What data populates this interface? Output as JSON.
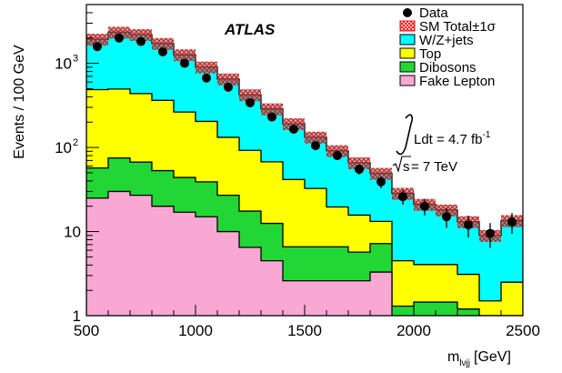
{
  "chart_data": {
    "type": "histogram-stacked",
    "title": "",
    "xlabel": "m",
    "xlabel_sub": "lνjj",
    "xlabel_unit": "[GeV]",
    "ylabel": "Events / 100 GeV",
    "xlim": [
      500,
      2500
    ],
    "ylim": [
      1,
      5000
    ],
    "yscale": "log",
    "x_ticks": [
      500,
      1000,
      1500,
      2000,
      2500
    ],
    "y_tick_labels": [
      {
        "value": 1,
        "label": "1"
      },
      {
        "value": 10,
        "label": "10"
      },
      {
        "value": 100,
        "base": "10",
        "exp": "2"
      },
      {
        "value": 1000,
        "base": "10",
        "exp": "3"
      }
    ],
    "bin_edges": [
      500,
      600,
      700,
      800,
      900,
      1000,
      1100,
      1200,
      1300,
      1400,
      1500,
      1600,
      1700,
      1800,
      1900,
      2000,
      2100,
      2200,
      2300,
      2400,
      2500
    ],
    "stack": [
      {
        "key": "fake",
        "color": "#f9a8d4",
        "values": [
          25,
          30,
          27,
          20,
          17,
          15,
          10,
          6.5,
          4.5,
          2.6,
          2.6,
          2.6,
          2.6,
          3.3,
          0,
          0,
          0,
          0,
          0,
          0
        ]
      },
      {
        "key": "dib",
        "color": "#22d636",
        "values": [
          32,
          45,
          40,
          33,
          27,
          24,
          17,
          11,
          8,
          4,
          4,
          4,
          3.1,
          3.9,
          1.3,
          1.45,
          1.45,
          1.2,
          0,
          0
        ]
      },
      {
        "key": "top",
        "color": "#ffff00",
        "values": [
          430,
          420,
          370,
          310,
          220,
          165,
          105,
          75,
          55,
          35,
          26,
          13,
          10,
          6,
          3.2,
          2.6,
          2.6,
          1.9,
          1.5,
          2.5
        ]
      },
      {
        "key": "wz",
        "color": "#00ffff",
        "values": [
          1450,
          1850,
          1760,
          1360,
          1000,
          700,
          520,
          330,
          220,
          150,
          100,
          72,
          50,
          36,
          24,
          17,
          14,
          10,
          7.5,
          11
        ]
      }
    ],
    "sm_uncertainty_fraction": 0.16,
    "data_points": [
      {
        "x": 550,
        "y": 1580,
        "err": 40
      },
      {
        "x": 650,
        "y": 2000,
        "err": 45
      },
      {
        "x": 750,
        "y": 1820,
        "err": 43
      },
      {
        "x": 850,
        "y": 1370,
        "err": 37
      },
      {
        "x": 950,
        "y": 1000,
        "err": 32
      },
      {
        "x": 1050,
        "y": 670,
        "err": 26
      },
      {
        "x": 1150,
        "y": 520,
        "err": 23
      },
      {
        "x": 1250,
        "y": 340,
        "err": 18
      },
      {
        "x": 1350,
        "y": 230,
        "err": 15
      },
      {
        "x": 1450,
        "y": 165,
        "err": 13
      },
      {
        "x": 1550,
        "y": 105,
        "err": 10
      },
      {
        "x": 1650,
        "y": 80,
        "err": 9
      },
      {
        "x": 1750,
        "y": 55,
        "err": 7.4
      },
      {
        "x": 1850,
        "y": 39,
        "err": 6.2
      },
      {
        "x": 1950,
        "y": 26,
        "err": 5.1
      },
      {
        "x": 2050,
        "y": 20,
        "err": 4.5
      },
      {
        "x": 2150,
        "y": 15,
        "err": 3.9
      },
      {
        "x": 2250,
        "y": 12,
        "err": 3.5
      },
      {
        "x": 2350,
        "y": 9.5,
        "err": 3.1
      },
      {
        "x": 2450,
        "y": 13,
        "err": 3.6
      }
    ],
    "legend": [
      {
        "label": "Data",
        "marker": "dot"
      },
      {
        "label": "SM Total±1σ",
        "marker": "hatch"
      },
      {
        "label": "W/Z+jets",
        "marker": "box",
        "color": "#00ffff"
      },
      {
        "label": "Top",
        "marker": "box",
        "color": "#ffff00"
      },
      {
        "label": "Dibosons",
        "marker": "box",
        "color": "#22d636"
      },
      {
        "label": "Fake Lepton",
        "marker": "box",
        "color": "#f9a8d4"
      }
    ],
    "legend_position": "top-right",
    "experiment_label": "ATLAS",
    "luminosity_text": "Ldt = 4.7 fb",
    "luminosity_exp": "-1",
    "energy_prefix": "s",
    "energy_text": "= 7 TeV"
  }
}
